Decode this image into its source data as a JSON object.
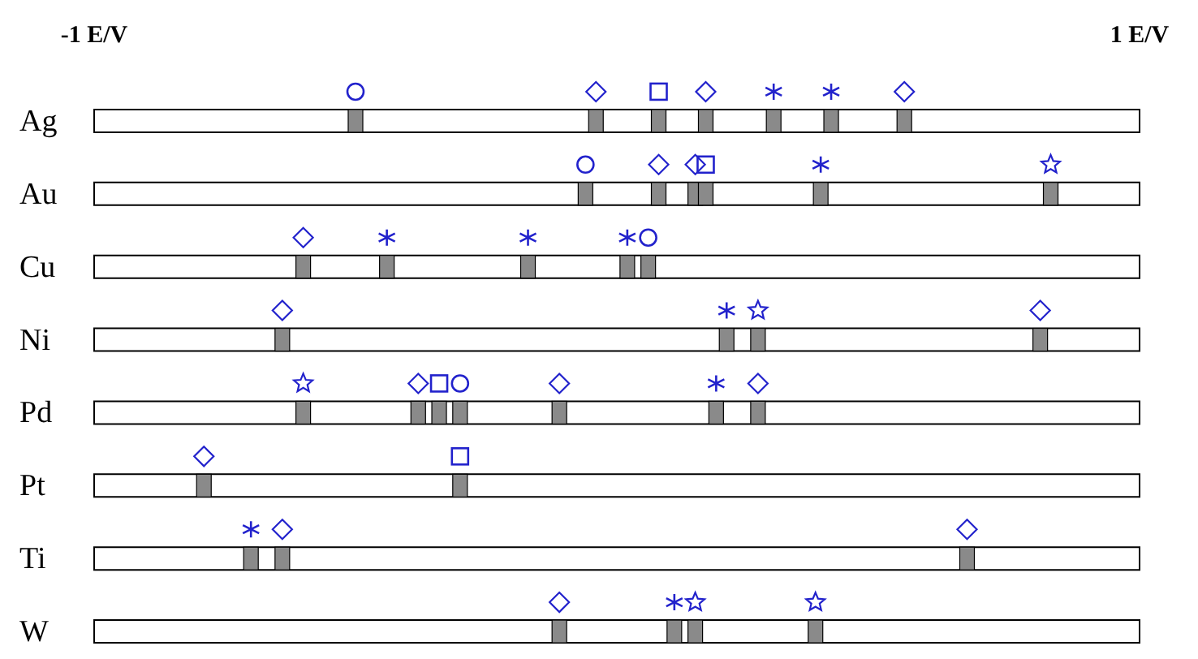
{
  "chart_data": {
    "type": "scatter",
    "orientation": "horizontal",
    "categories": [
      "Ag",
      "Au",
      "Cu",
      "Ni",
      "Pd",
      "Pt",
      "Ti",
      "W"
    ],
    "xlim": [
      -1,
      1
    ],
    "xticks": [
      {
        "value": -1,
        "label": "-1 E/V"
      },
      {
        "value": 1,
        "label": "1 E/V"
      }
    ],
    "grid": false,
    "legend": false,
    "series": [
      {
        "marker": "circle",
        "color": "#2222cc",
        "x": [
          "Ag",
          "Cu",
          "Pd",
          "Au"
        ],
        "values": [
          -0.5,
          0.06,
          -0.3,
          -0.06
        ]
      },
      {
        "marker": "diamond",
        "color": "#2222cc",
        "x": [
          "Ag",
          "Ag",
          "Au",
          "Ni",
          "Pd",
          "Pd",
          "Pt",
          "Ti",
          "W",
          "Ag",
          "Au",
          "Cu",
          "Ni",
          "Pd",
          "Ti"
        ],
        "values": [
          -0.04,
          0.55,
          0.08,
          0.81,
          -0.38,
          -0.11,
          -0.79,
          0.67,
          -0.11,
          0.17,
          0.15,
          -0.6,
          -0.64,
          0.27,
          -0.64
        ]
      },
      {
        "marker": "square",
        "color": "#2222cc",
        "x": [
          "Ag",
          "Pt",
          "Au",
          "Pd"
        ],
        "values": [
          0.08,
          -0.3,
          0.17,
          -0.34
        ]
      },
      {
        "marker": "cross",
        "color": "#2222cc",
        "x": [
          "Ag",
          "Cu",
          "Cu",
          "Ni",
          "Pd",
          "Ag",
          "Au",
          "Cu",
          "Ti",
          "W"
        ],
        "values": [
          0.41,
          -0.44,
          0.02,
          0.21,
          0.19,
          0.3,
          0.39,
          -0.17,
          -0.7,
          0.11
        ]
      },
      {
        "marker": "star",
        "color": "#2222cc",
        "x": [
          "Au",
          "Ni",
          "W",
          "W",
          "Pd"
        ],
        "values": [
          0.83,
          0.27,
          0.15,
          0.38,
          -0.6
        ]
      }
    ]
  }
}
